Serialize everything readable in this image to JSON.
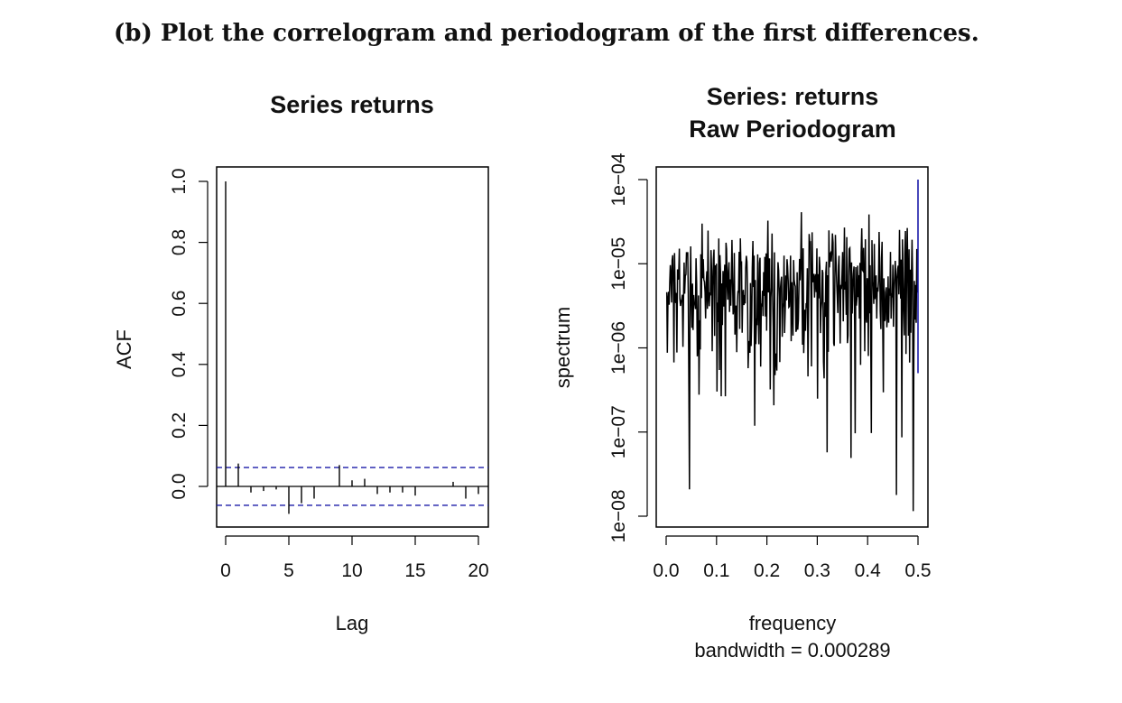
{
  "heading": "(b) Plot the correlogram and periodogram of the first differences.",
  "colors": {
    "ink": "#000000",
    "confidence": "#1a1aa8",
    "spectrum_end": "#1a1aa8"
  },
  "chart_data": [
    {
      "type": "bar",
      "title": "Series  returns",
      "xlabel": "Lag",
      "ylabel": "ACF",
      "xlim": [
        0,
        21
      ],
      "ylim": [
        -0.13,
        1.0
      ],
      "xticks": [
        "0",
        "5",
        "10",
        "15",
        "20"
      ],
      "yticks": [
        "0.0",
        "0.2",
        "0.4",
        "0.6",
        "0.8",
        "1.0"
      ],
      "lags": [
        0,
        1,
        2,
        3,
        4,
        5,
        6,
        7,
        8,
        9,
        10,
        11,
        12,
        13,
        14,
        15,
        16,
        17,
        18,
        19,
        20
      ],
      "values": [
        1.0,
        0.075,
        -0.02,
        -0.015,
        -0.01,
        -0.09,
        -0.055,
        -0.04,
        0.0,
        0.07,
        0.02,
        0.025,
        -0.025,
        -0.02,
        -0.02,
        -0.03,
        0.0,
        0.0,
        0.015,
        -0.04,
        -0.025
      ],
      "confidence_band": [
        0.062,
        -0.062
      ]
    },
    {
      "type": "line",
      "title_lines": [
        "Series: returns",
        "Raw Periodogram"
      ],
      "xlabel": "frequency",
      "sublabel": "bandwidth = 0.000289",
      "ylabel": "spectrum",
      "log_y": true,
      "xlim": [
        0,
        0.5
      ],
      "ylim_log10": [
        -8,
        -4
      ],
      "xticks": [
        "0.0",
        "0.1",
        "0.2",
        "0.3",
        "0.4",
        "0.5"
      ],
      "yticks": [
        "1e−08",
        "1e−07",
        "1e−06",
        "1e−05",
        "1e−04"
      ],
      "n_points": 420,
      "typical_value": 7e-06,
      "max_value": 0.0001,
      "min_value": 1e-08
    }
  ]
}
